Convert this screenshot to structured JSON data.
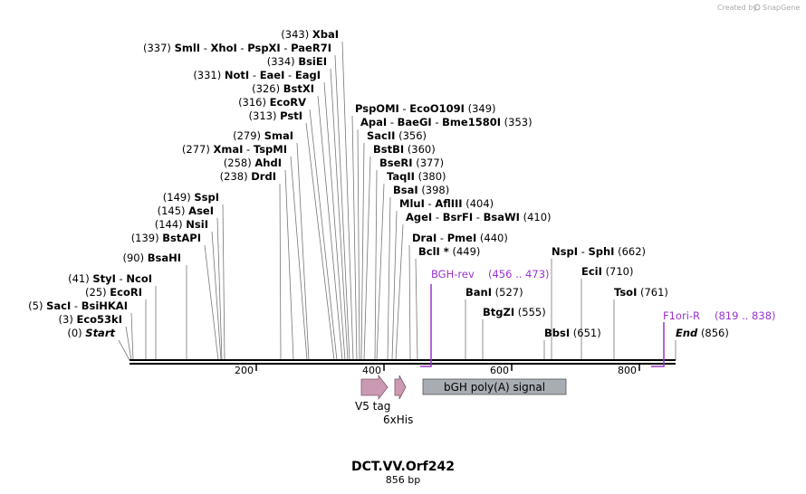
{
  "credit": {
    "prefix": "Created by",
    "brand": "SnapGene"
  },
  "sequence": {
    "name": "DCT.VV.Orf242",
    "length_label": "856 bp",
    "length": 856
  },
  "ticks": [
    "200",
    "400",
    "600",
    "800"
  ],
  "labels": [
    {
      "pos": "(343)",
      "name": "XbaI"
    },
    {
      "pos": "(337)",
      "name": "SmlI",
      "extra": [
        "XhoI",
        "PspXI",
        "PaeR7I"
      ]
    },
    {
      "pos": "(334)",
      "name": "BsiEI"
    },
    {
      "pos": "(331)",
      "name": "NotI",
      "extra": [
        "EaeI",
        "EagI"
      ]
    },
    {
      "pos": "(326)",
      "name": "BstXI"
    },
    {
      "pos": "(316)",
      "name": "EcoRV"
    },
    {
      "pos": "(313)",
      "name": "PstI"
    },
    {
      "pos": "(279)",
      "name": "SmaI"
    },
    {
      "pos": "(277)",
      "name": "XmaI",
      "extra": [
        "TspMI"
      ]
    },
    {
      "pos": "(258)",
      "name": "AhdI"
    },
    {
      "pos": "(238)",
      "name": "DrdI"
    },
    {
      "pos": "(149)",
      "name": "SspI"
    },
    {
      "pos": "(145)",
      "name": "AseI"
    },
    {
      "pos": "(144)",
      "name": "NsiI"
    },
    {
      "pos": "(139)",
      "name": "BstAPI"
    },
    {
      "pos": "(90)",
      "name": "BsaHI"
    },
    {
      "pos": "(41)",
      "name": "StyI",
      "extra": [
        "NcoI"
      ]
    },
    {
      "pos": "(25)",
      "name": "EcoRI"
    },
    {
      "pos": "(5)",
      "name": "SacI",
      "extra": [
        "BsiHKAI"
      ]
    },
    {
      "pos": "(3)",
      "name": "Eco53kI"
    },
    {
      "pos": "(0)",
      "name": "Start",
      "italic": true
    },
    {
      "name": "PspOMI",
      "extra": [
        "EcoO109I"
      ],
      "pos": "(349)",
      "right": true
    },
    {
      "name": "ApaI",
      "extra": [
        "BaeGI",
        "Bme1580I"
      ],
      "pos": "(353)",
      "right": true
    },
    {
      "name": "SacII",
      "pos": "(356)",
      "right": true
    },
    {
      "name": "BstBI",
      "pos": "(360)",
      "right": true
    },
    {
      "name": "BseRI",
      "pos": "(377)",
      "right": true
    },
    {
      "name": "TaqII",
      "pos": "(380)",
      "right": true
    },
    {
      "name": "BsaI",
      "pos": "(398)",
      "right": true
    },
    {
      "name": "MluI",
      "extra": [
        "AflIII"
      ],
      "pos": "(404)",
      "right": true
    },
    {
      "name": "AgeI",
      "extra": [
        "BsrFI",
        "BsaWI"
      ],
      "pos": "(410)",
      "right": true
    },
    {
      "name": "DraI",
      "extra": [
        "PmeI"
      ],
      "pos": "(440)",
      "right": true
    },
    {
      "name": "BclI *",
      "pos": "(449)",
      "right": true
    },
    {
      "name": "BanI",
      "pos": "(527)",
      "right": true
    },
    {
      "name": "BtgZI",
      "pos": "(555)",
      "right": true
    },
    {
      "name": "NspI",
      "extra": [
        "SphI"
      ],
      "pos": "(662)",
      "right": true
    },
    {
      "name": "EciI",
      "pos": "(710)",
      "right": true
    },
    {
      "name": "TsoI",
      "pos": "(761)",
      "right": true
    },
    {
      "name": "BbsI",
      "pos": "(651)",
      "right": true
    },
    {
      "name": "End",
      "pos": "(856)",
      "right": true,
      "italic": true
    }
  ],
  "primers": [
    {
      "name": "BGH-rev",
      "range": "(456 .. 473)"
    },
    {
      "name": "F1ori-R",
      "range": "(819 .. 838)"
    }
  ],
  "features": [
    {
      "name": "V5 tag",
      "color": "#cc99b2"
    },
    {
      "name": "6xHis",
      "color": "#cc99b2"
    },
    {
      "name": "bGH poly(A) signal",
      "color": "#a8adb3"
    }
  ],
  "colors": {
    "primer": "#9933cc",
    "backbone": "#000000"
  }
}
